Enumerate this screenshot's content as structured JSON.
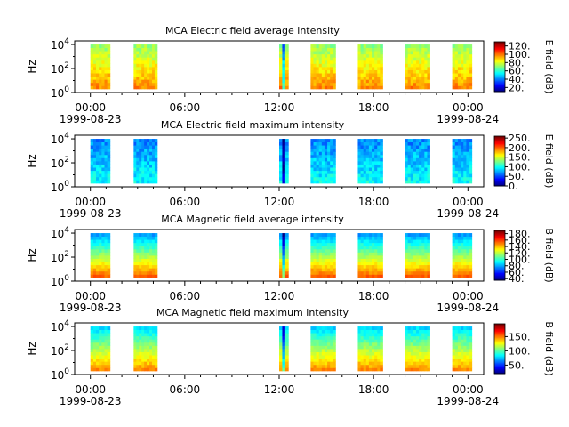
{
  "chart_data": [
    {
      "type": "heatmap",
      "title": "MCA  Electric field average intensity",
      "ylabel": "Hz",
      "y_ticks": [
        "10",
        "10",
        "10"
      ],
      "y_tick_exps": [
        "0",
        "2",
        "4"
      ],
      "x_ticks": [
        "00:00",
        "06:00",
        "12:00",
        "18:00",
        "00:00"
      ],
      "x_date_start": "1999-08-23",
      "x_date_end": "1999-08-24",
      "colorbar": {
        "label": "E field (dB)",
        "ticks": [
          "20.",
          "40.",
          "60.",
          "80.",
          "100.",
          "120."
        ],
        "range": [
          10,
          130
        ]
      },
      "segments": [
        {
          "start": "00:00",
          "end": "01:15"
        },
        {
          "start": "02:45",
          "end": "04:15"
        },
        {
          "start": "12:00",
          "end": "12:35"
        },
        {
          "start": "14:00",
          "end": "15:35"
        },
        {
          "start": "17:00",
          "end": "18:35"
        },
        {
          "start": "20:00",
          "end": "21:35"
        },
        {
          "start": "23:00",
          "end": "00:15"
        }
      ]
    },
    {
      "type": "heatmap",
      "title": "MCA  Electric field maximum intensity",
      "ylabel": "Hz",
      "y_ticks": [
        "10",
        "10",
        "10"
      ],
      "y_tick_exps": [
        "0",
        "2",
        "4"
      ],
      "x_ticks": [
        "00:00",
        "06:00",
        "12:00",
        "18:00",
        "00:00"
      ],
      "x_date_start": "1999-08-23",
      "x_date_end": "1999-08-24",
      "colorbar": {
        "label": "E field (dB)",
        "ticks": [
          "0.",
          "50.",
          "100.",
          "150.",
          "200.",
          "250."
        ],
        "range": [
          0,
          260
        ]
      },
      "segments": [
        {
          "start": "00:00",
          "end": "01:15"
        },
        {
          "start": "02:45",
          "end": "04:15"
        },
        {
          "start": "12:00",
          "end": "12:35"
        },
        {
          "start": "14:00",
          "end": "15:35"
        },
        {
          "start": "17:00",
          "end": "18:35"
        },
        {
          "start": "20:00",
          "end": "21:35"
        },
        {
          "start": "23:00",
          "end": "00:15"
        }
      ]
    },
    {
      "type": "heatmap",
      "title": "MCA  Magnetic field average intensity",
      "ylabel": "Hz",
      "y_ticks": [
        "10",
        "10",
        "10"
      ],
      "y_tick_exps": [
        "0",
        "2",
        "4"
      ],
      "x_ticks": [
        "00:00",
        "06:00",
        "12:00",
        "18:00",
        "00:00"
      ],
      "x_date_start": "1999-08-23",
      "x_date_end": "1999-08-24",
      "colorbar": {
        "label": "B field (dB)",
        "ticks": [
          "40.",
          "60.",
          "80.",
          "100.",
          "120.",
          "140.",
          "160.",
          "180."
        ],
        "range": [
          35,
          190
        ]
      },
      "segments": [
        {
          "start": "00:00",
          "end": "01:15"
        },
        {
          "start": "02:45",
          "end": "04:15"
        },
        {
          "start": "12:00",
          "end": "12:35"
        },
        {
          "start": "14:00",
          "end": "15:35"
        },
        {
          "start": "17:00",
          "end": "18:35"
        },
        {
          "start": "20:00",
          "end": "21:35"
        },
        {
          "start": "23:00",
          "end": "00:15"
        }
      ]
    },
    {
      "type": "heatmap",
      "title": "MCA  Magnetic field maximum intensity",
      "ylabel": "Hz",
      "y_ticks": [
        "10",
        "10",
        "10"
      ],
      "y_tick_exps": [
        "0",
        "2",
        "4"
      ],
      "x_ticks": [
        "00:00",
        "06:00",
        "12:00",
        "18:00",
        "00:00"
      ],
      "x_date_start": "1999-08-23",
      "x_date_end": "1999-08-24",
      "colorbar": {
        "label": "B field (dB)",
        "ticks": [
          "50.",
          "100.",
          "150."
        ],
        "range": [
          20,
          195
        ]
      },
      "segments": [
        {
          "start": "00:00",
          "end": "01:15"
        },
        {
          "start": "02:45",
          "end": "04:15"
        },
        {
          "start": "12:00",
          "end": "12:35"
        },
        {
          "start": "14:00",
          "end": "15:35"
        },
        {
          "start": "17:00",
          "end": "18:35"
        },
        {
          "start": "20:00",
          "end": "21:35"
        },
        {
          "start": "23:00",
          "end": "00:15"
        }
      ]
    }
  ]
}
